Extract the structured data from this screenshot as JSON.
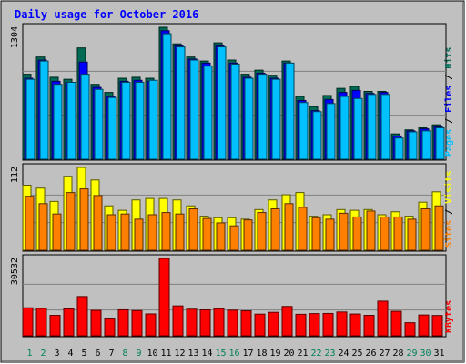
{
  "chart_data": {
    "type": "bar",
    "title": "Daily usage for October 2016",
    "categories": [
      "1",
      "2",
      "3",
      "4",
      "5",
      "6",
      "7",
      "8",
      "9",
      "10",
      "11",
      "12",
      "13",
      "14",
      "15",
      "16",
      "17",
      "18",
      "19",
      "20",
      "21",
      "22",
      "23",
      "24",
      "25",
      "26",
      "27",
      "28",
      "29",
      "30",
      "31"
    ],
    "weekend_days": [
      "1",
      "2",
      "8",
      "9",
      "15",
      "16",
      "22",
      "23",
      "29",
      "30"
    ],
    "colors": {
      "hits": "#006b54",
      "files": "#0000ff",
      "pages": "#00c0ff",
      "visits": "#ffff00",
      "sites": "#ff8000",
      "kbytes": "#ff0000",
      "weekday_label": "#000000",
      "weekend_label": "#00805c",
      "title": "#0000ff",
      "background": "#c0c0c0"
    },
    "panels": [
      {
        "name": "hits",
        "max_label": "1304",
        "ylim": [
          0,
          1304
        ],
        "legend": [
          "Pages",
          "Files",
          "Hits"
        ],
        "legend_colors": [
          "#00c0ff",
          "#0000ff",
          "#006b54"
        ],
        "series": [
          {
            "name": "Hits",
            "color": "#006b54",
            "values": [
              840,
              1010,
              810,
              790,
              1100,
              740,
              660,
              800,
              810,
              800,
              1304,
              1140,
              1010,
              970,
              1150,
              980,
              840,
              880,
              830,
              970,
              620,
              520,
              630,
              700,
              720,
              670,
              670,
              250,
              290,
              310,
              340
            ]
          },
          {
            "name": "Files",
            "color": "#0000ff",
            "values": [
              800,
              980,
              770,
              760,
              960,
              710,
              620,
              770,
              780,
              770,
              1270,
              1120,
              990,
              950,
              1120,
              950,
              810,
              850,
              800,
              950,
              580,
              480,
              590,
              660,
              680,
              650,
              660,
              230,
              280,
              300,
              320
            ]
          },
          {
            "name": "Pages",
            "color": "#00c0ff",
            "values": [
              790,
              970,
              740,
              760,
              840,
              690,
              610,
              760,
              760,
              780,
              1240,
              1110,
              980,
              920,
              1110,
              940,
              800,
              840,
              790,
              950,
              560,
              470,
              550,
              620,
              600,
              640,
              640,
              210,
              270,
              280,
              310
            ]
          }
        ]
      },
      {
        "name": "visits",
        "max_label": "112",
        "ylim": [
          0,
          112
        ],
        "legend": [
          "Sites",
          "Visits"
        ],
        "legend_colors": [
          "#ff8000",
          "#ffff00"
        ],
        "series": [
          {
            "name": "Visits",
            "color": "#ffff00",
            "values": [
              88,
              84,
              66,
              100,
              112,
              95,
              60,
              54,
              68,
              70,
              70,
              68,
              60,
              46,
              44,
              44,
              42,
              55,
              68,
              75,
              78,
              46,
              48,
              55,
              54,
              55,
              48,
              52,
              46,
              65,
              79
            ]
          },
          {
            "name": "Sites",
            "color": "#ff8000",
            "values": [
              73,
              63,
              49,
              78,
              83,
              74,
              48,
              49,
              42,
              48,
              51,
              49,
              56,
              43,
              37,
              33,
              41,
              51,
              56,
              63,
              58,
              44,
              42,
              50,
              45,
              53,
              45,
              45,
              42,
              56,
              60
            ]
          }
        ]
      },
      {
        "name": "kbytes",
        "max_label": "30532",
        "ylim": [
          0,
          30532
        ],
        "legend": [
          "KBytes"
        ],
        "legend_colors": [
          "#ff0000"
        ],
        "series": [
          {
            "name": "KBytes",
            "color": "#ff0000",
            "values": [
              11050,
              10770,
              8070,
              10620,
              15490,
              10050,
              6990,
              10250,
              9960,
              8630,
              30532,
              11790,
              10500,
              10230,
              10650,
              10120,
              9860,
              8550,
              9270,
              11580,
              8490,
              8760,
              8820,
              9400,
              8590,
              8080,
              13670,
              9670,
              5160,
              8210,
              8020
            ]
          }
        ]
      }
    ]
  }
}
